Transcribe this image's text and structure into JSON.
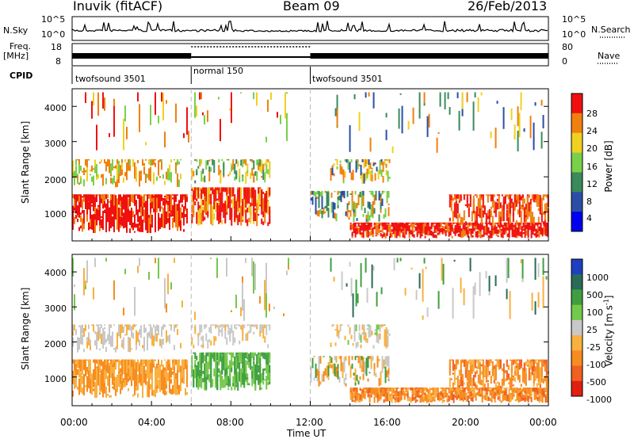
{
  "header": {
    "station": "Inuvik (fitACF)",
    "beam": "Beam 09",
    "date": "26/Feb/2013"
  },
  "top_panels": {
    "nsky_label": "N.Sky",
    "nsky_ticks": [
      "10^5",
      "10^0"
    ],
    "nsearch_ticks": [
      "10^5",
      "10^0"
    ],
    "nsearch_label": "N.Search",
    "freq_label_1": "Freq.",
    "freq_label_2": "[MHz]",
    "freq_ticks": [
      "18",
      "8"
    ],
    "nave_ticks": [
      "80",
      "0"
    ],
    "nave_label": "Nave",
    "cpid_label": "CPID",
    "cpid_segments": [
      {
        "label": "twofsound 3501",
        "start_hour": 0,
        "end_hour": 6
      },
      {
        "label": "normal 150",
        "start_hour": 6,
        "end_hour": 12
      },
      {
        "label": "twofsound 3501",
        "start_hour": 12,
        "end_hour": 24
      }
    ]
  },
  "chart_data": [
    {
      "type": "heatmap",
      "panel": "power",
      "ylabel": "Slant Range [km]",
      "ylim": [
        180,
        4500
      ],
      "y_ticks": [
        "1000",
        "2000",
        "3000",
        "4000"
      ],
      "x_range_hours": [
        0,
        24
      ],
      "colorbar_label": "Power [dB]",
      "colorbar_ticks": [
        "4",
        "8",
        "12",
        "16",
        "20",
        "24",
        "28"
      ],
      "colors": [
        "#0000ee",
        "#2a4ea6",
        "#3a8a5a",
        "#7ad04a",
        "#f0d020",
        "#f08010",
        "#f01010"
      ]
    },
    {
      "type": "heatmap",
      "panel": "velocity",
      "ylabel": "Slant Range [km]",
      "ylim": [
        180,
        4500
      ],
      "y_ticks": [
        "1000",
        "2000",
        "3000",
        "4000"
      ],
      "x_range_hours": [
        0,
        24
      ],
      "colorbar_label": "Velocity [m s",
      "colorbar_sup": "-1",
      "colorbar_label_end": "]",
      "colorbar_ticks": [
        "1000",
        "500",
        "100",
        "25",
        "-25",
        "-100",
        "-500",
        "-1000"
      ],
      "colors": [
        "#1f3fbf",
        "#2a6a58",
        "#3f9f3f",
        "#74c84a",
        "#c8c8c8",
        "#f8b040",
        "#f88c20",
        "#f06020",
        "#e02010"
      ]
    }
  ],
  "x_axis": {
    "tick_labels": [
      "00:00",
      "04:00",
      "08:00",
      "12:00",
      "16:00",
      "20:00",
      "00:00"
    ],
    "label": "Time UT"
  }
}
